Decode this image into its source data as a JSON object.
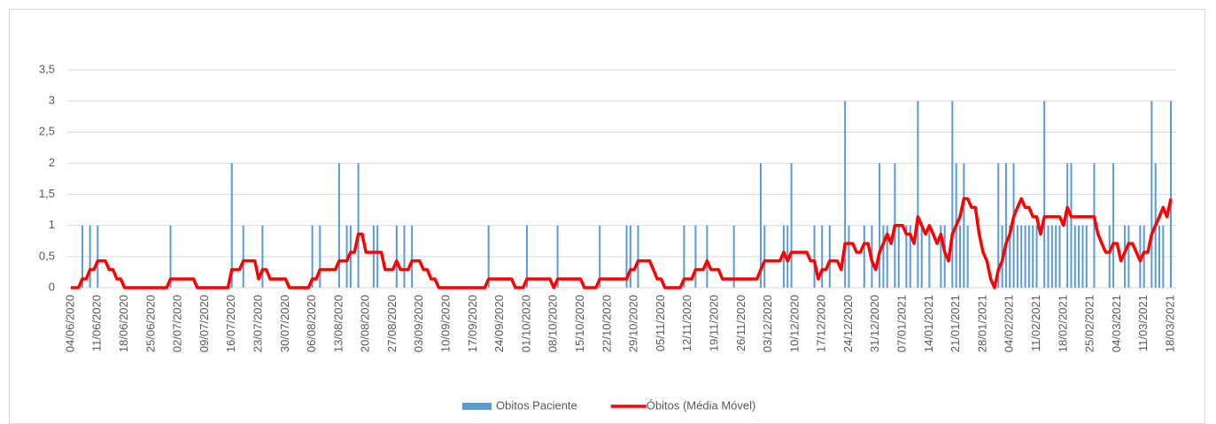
{
  "chart_data": {
    "type": "combo",
    "categories": [
      "04/06/2020",
      null,
      null,
      null,
      null,
      null,
      null,
      "11/06/2020",
      null,
      null,
      null,
      null,
      null,
      null,
      "18/06/2020",
      null,
      null,
      null,
      null,
      null,
      null,
      "25/06/2020",
      null,
      null,
      null,
      null,
      null,
      null,
      "02/07/2020",
      null,
      null,
      null,
      null,
      null,
      null,
      "09/07/2020",
      null,
      null,
      null,
      null,
      null,
      null,
      "16/07/2020",
      null,
      null,
      null,
      null,
      null,
      null,
      "23/07/2020",
      null,
      null,
      null,
      null,
      null,
      null,
      "30/07/2020",
      null,
      null,
      null,
      null,
      null,
      null,
      "06/08/2020",
      null,
      null,
      null,
      null,
      null,
      null,
      "13/08/2020",
      null,
      null,
      null,
      null,
      null,
      null,
      "20/08/2020",
      null,
      null,
      null,
      null,
      null,
      null,
      "27/08/2020",
      null,
      null,
      null,
      null,
      null,
      null,
      "03/09/2020",
      null,
      null,
      null,
      null,
      null,
      null,
      "10/09/2020",
      null,
      null,
      null,
      null,
      null,
      null,
      "17/09/2020",
      null,
      null,
      null,
      null,
      null,
      null,
      "24/09/2020",
      null,
      null,
      null,
      null,
      null,
      null,
      "01/10/2020",
      null,
      null,
      null,
      null,
      null,
      null,
      "08/10/2020",
      null,
      null,
      null,
      null,
      null,
      null,
      "15/10/2020",
      null,
      null,
      null,
      null,
      null,
      null,
      "22/10/2020",
      null,
      null,
      null,
      null,
      null,
      null,
      "29/10/2020",
      null,
      null,
      null,
      null,
      null,
      null,
      "05/11/2020",
      null,
      null,
      null,
      null,
      null,
      null,
      "12/11/2020",
      null,
      null,
      null,
      null,
      null,
      null,
      "19/11/2020",
      null,
      null,
      null,
      null,
      null,
      null,
      "26/11/2020",
      null,
      null,
      null,
      null,
      null,
      null,
      "03/12/2020",
      null,
      null,
      null,
      null,
      null,
      null,
      "10/12/2020",
      null,
      null,
      null,
      null,
      null,
      null,
      "17/12/2020",
      null,
      null,
      null,
      null,
      null,
      null,
      "24/12/2020",
      null,
      null,
      null,
      null,
      null,
      null,
      "31/12/2020",
      null,
      null,
      null,
      null,
      null,
      null,
      "07/01/2021",
      null,
      null,
      null,
      null,
      null,
      null,
      "14/01/2021",
      null,
      null,
      null,
      null,
      null,
      null,
      "21/01/2021",
      null,
      null,
      null,
      null,
      null,
      null,
      "28/01/2021",
      null,
      null,
      null,
      null,
      null,
      null,
      "04/02/2021",
      null,
      null,
      null,
      null,
      null,
      null,
      "11/02/2021",
      null,
      null,
      null,
      null,
      null,
      null,
      "18/02/2021",
      null,
      null,
      null,
      null,
      null,
      null,
      "25/02/2021",
      null,
      null,
      null,
      null,
      null,
      null,
      "04/03/2021",
      null,
      null,
      null,
      null,
      null,
      null,
      "11/03/2021",
      null,
      null,
      null,
      null,
      null,
      null,
      "18/03/2021"
    ],
    "series": [
      {
        "name": "Obitos Paciente",
        "type": "bar",
        "color": "#5b9bd5",
        "values": [
          0,
          0,
          0,
          1,
          0,
          1,
          0,
          1,
          0,
          0,
          0,
          0,
          0,
          0,
          0,
          0,
          0,
          0,
          0,
          0,
          0,
          0,
          0,
          0,
          0,
          0,
          1,
          0,
          0,
          0,
          0,
          0,
          0,
          0,
          0,
          0,
          0,
          0,
          0,
          0,
          0,
          0,
          2,
          0,
          0,
          1,
          0,
          0,
          0,
          0,
          1,
          0,
          0,
          0,
          0,
          0,
          0,
          0,
          0,
          0,
          0,
          0,
          0,
          1,
          0,
          1,
          0,
          0,
          0,
          0,
          2,
          0,
          1,
          1,
          0,
          2,
          0,
          0,
          0,
          1,
          1,
          0,
          0,
          0,
          0,
          1,
          0,
          1,
          0,
          1,
          0,
          0,
          0,
          0,
          0,
          0,
          0,
          0,
          0,
          0,
          0,
          0,
          0,
          0,
          0,
          0,
          0,
          0,
          0,
          1,
          0,
          0,
          0,
          0,
          0,
          0,
          0,
          0,
          0,
          1,
          0,
          0,
          0,
          0,
          0,
          0,
          0,
          1,
          0,
          0,
          0,
          0,
          0,
          0,
          0,
          0,
          0,
          0,
          1,
          0,
          0,
          0,
          0,
          0,
          0,
          1,
          1,
          0,
          1,
          0,
          0,
          0,
          0,
          0,
          0,
          0,
          0,
          0,
          0,
          0,
          1,
          0,
          0,
          1,
          0,
          0,
          1,
          0,
          0,
          0,
          0,
          0,
          0,
          1,
          0,
          0,
          0,
          0,
          0,
          0,
          2,
          1,
          0,
          0,
          0,
          0,
          1,
          1,
          2,
          0,
          0,
          0,
          0,
          0,
          1,
          0,
          1,
          0,
          1,
          0,
          0,
          0,
          3,
          1,
          0,
          0,
          0,
          1,
          0,
          1,
          0,
          2,
          1,
          1,
          0,
          2,
          1,
          0,
          1,
          1,
          0,
          3,
          1,
          0,
          1,
          0,
          0,
          1,
          1,
          0,
          3,
          2,
          1,
          2,
          1,
          0,
          0,
          0,
          0,
          0,
          0,
          0,
          2,
          1,
          2,
          1,
          2,
          1,
          1,
          1,
          1,
          1,
          1,
          0,
          3,
          1,
          1,
          1,
          1,
          0,
          2,
          2,
          1,
          1,
          1,
          1,
          0,
          2,
          0,
          0,
          0,
          1,
          2,
          0,
          0,
          1,
          1,
          0,
          0,
          1,
          1,
          0,
          3,
          2,
          1,
          1,
          0,
          3
        ]
      },
      {
        "name": "Óbitos (Média Móvel)",
        "type": "line",
        "color": "#ff0000",
        "values": [
          0,
          0,
          0,
          0.14,
          0.14,
          0.29,
          0.29,
          0.43,
          0.43,
          0.43,
          0.29,
          0.29,
          0.14,
          0.14,
          0,
          0,
          0,
          0,
          0,
          0,
          0,
          0,
          0,
          0,
          0,
          0,
          0.14,
          0.14,
          0.14,
          0.14,
          0.14,
          0.14,
          0.14,
          0,
          0,
          0,
          0,
          0,
          0,
          0,
          0,
          0,
          0.29,
          0.29,
          0.29,
          0.43,
          0.43,
          0.43,
          0.43,
          0.14,
          0.29,
          0.29,
          0.14,
          0.14,
          0.14,
          0.14,
          0.14,
          0,
          0,
          0,
          0,
          0,
          0,
          0.14,
          0.14,
          0.29,
          0.29,
          0.29,
          0.29,
          0.29,
          0.43,
          0.43,
          0.43,
          0.57,
          0.57,
          0.86,
          0.86,
          0.57,
          0.57,
          0.57,
          0.57,
          0.57,
          0.29,
          0.29,
          0.29,
          0.43,
          0.29,
          0.29,
          0.29,
          0.43,
          0.43,
          0.43,
          0.29,
          0.29,
          0.14,
          0.14,
          0,
          0,
          0,
          0,
          0,
          0,
          0,
          0,
          0,
          0,
          0,
          0,
          0,
          0.14,
          0.14,
          0.14,
          0.14,
          0.14,
          0.14,
          0.14,
          0,
          0,
          0,
          0.14,
          0.14,
          0.14,
          0.14,
          0.14,
          0.14,
          0.14,
          0,
          0.14,
          0.14,
          0.14,
          0.14,
          0.14,
          0.14,
          0.14,
          0,
          0,
          0,
          0,
          0.14,
          0.14,
          0.14,
          0.14,
          0.14,
          0.14,
          0.14,
          0.14,
          0.29,
          0.29,
          0.43,
          0.43,
          0.43,
          0.43,
          0.29,
          0.14,
          0.14,
          0,
          0,
          0,
          0,
          0,
          0.14,
          0.14,
          0.14,
          0.29,
          0.29,
          0.29,
          0.43,
          0.29,
          0.29,
          0.29,
          0.14,
          0.14,
          0.14,
          0.14,
          0.14,
          0.14,
          0.14,
          0.14,
          0.14,
          0.14,
          0.29,
          0.43,
          0.43,
          0.43,
          0.43,
          0.43,
          0.57,
          0.43,
          0.57,
          0.57,
          0.57,
          0.57,
          0.57,
          0.43,
          0.43,
          0.14,
          0.29,
          0.29,
          0.43,
          0.43,
          0.43,
          0.29,
          0.71,
          0.71,
          0.71,
          0.57,
          0.57,
          0.71,
          0.71,
          0.43,
          0.29,
          0.57,
          0.71,
          0.86,
          0.71,
          1,
          1,
          1,
          0.86,
          0.86,
          0.71,
          1.14,
          1,
          0.86,
          1,
          0.86,
          0.71,
          0.86,
          0.57,
          0.43,
          0.86,
          1,
          1.14,
          1.43,
          1.43,
          1.29,
          1.29,
          0.86,
          0.57,
          0.43,
          0.14,
          0,
          0.29,
          0.43,
          0.71,
          0.86,
          1.14,
          1.29,
          1.43,
          1.29,
          1.29,
          1.14,
          1.14,
          0.86,
          1.14,
          1.14,
          1.14,
          1.14,
          1.14,
          1,
          1.29,
          1.14,
          1.14,
          1.14,
          1.14,
          1.14,
          1.14,
          1.14,
          0.86,
          0.71,
          0.57,
          0.57,
          0.71,
          0.71,
          0.43,
          0.57,
          0.71,
          0.71,
          0.57,
          0.43,
          0.57,
          0.57,
          0.86,
          1,
          1.14,
          1.29,
          1.14,
          1.43
        ]
      }
    ],
    "ylim": [
      0,
      3.5
    ],
    "yticks": [
      0,
      {
        "value": 0.5,
        "label": "0,5"
      },
      1,
      {
        "value": 1.5,
        "label": "1,5"
      },
      2,
      {
        "value": 2.5,
        "label": "2,5"
      },
      3,
      {
        "value": 3.5,
        "label": "3,5"
      }
    ],
    "grid": true,
    "legend": "bottom"
  }
}
